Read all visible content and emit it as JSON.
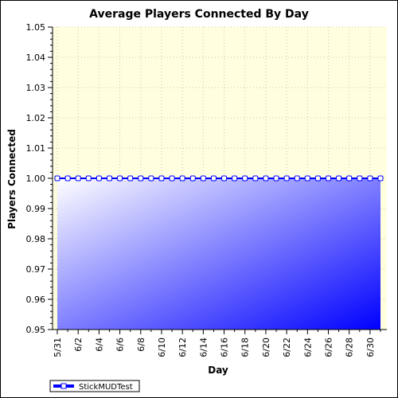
{
  "chart_data": {
    "type": "area",
    "title": "Average Players Connected By Day",
    "xlabel": "Day",
    "ylabel": "Players Connected",
    "ylim": [
      0.95,
      1.05
    ],
    "yticks": [
      "0.95",
      "0.96",
      "0.97",
      "0.98",
      "0.99",
      "1.00",
      "1.01",
      "1.02",
      "1.03",
      "1.04",
      "1.05"
    ],
    "x": [
      "5/31",
      "6/1",
      "6/2",
      "6/3",
      "6/4",
      "6/5",
      "6/6",
      "6/7",
      "6/8",
      "6/9",
      "6/10",
      "6/11",
      "6/12",
      "6/13",
      "6/14",
      "6/15",
      "6/16",
      "6/17",
      "6/18",
      "6/19",
      "6/20",
      "6/21",
      "6/22",
      "6/23",
      "6/24",
      "6/25",
      "6/26",
      "6/27",
      "6/28",
      "6/29",
      "6/30",
      "7/1"
    ],
    "xtick_labels": [
      "5/31",
      "6/2",
      "6/4",
      "6/6",
      "6/8",
      "6/10",
      "6/12",
      "6/14",
      "6/16",
      "6/18",
      "6/20",
      "6/22",
      "6/24",
      "6/26",
      "6/28",
      "6/30"
    ],
    "series": [
      {
        "name": "StickMUDTest",
        "values": [
          1.0,
          1.0,
          1.0,
          1.0,
          1.0,
          1.0,
          1.0,
          1.0,
          1.0,
          1.0,
          1.0,
          1.0,
          1.0,
          1.0,
          1.0,
          1.0,
          1.0,
          1.0,
          1.0,
          1.0,
          1.0,
          1.0,
          1.0,
          1.0,
          1.0,
          1.0,
          1.0,
          1.0,
          1.0,
          1.0,
          1.0,
          1.0
        ]
      }
    ],
    "grid": true,
    "legend_position": "bottom-left",
    "colors": {
      "plot_background": "#ffffe0",
      "fill_start": "#ffffff",
      "fill_end": "#0000ff",
      "line": "#0000ff",
      "marker_fill": "#ffffff",
      "grid": "#c8c8a0"
    }
  }
}
